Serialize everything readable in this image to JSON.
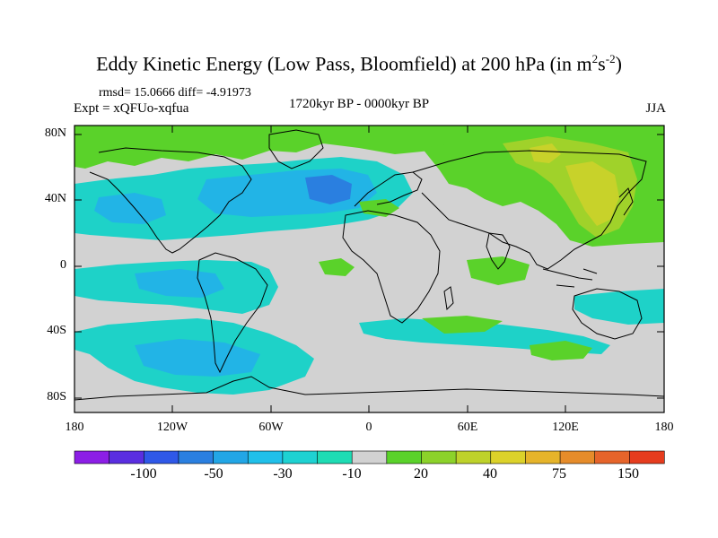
{
  "title": {
    "main": "Eddy Kinetic Energy (Low Pass, Bloomfield) at 200 hPa (in m",
    "exp1": "2",
    "mid": "s",
    "exp2": "-2",
    "end": ")"
  },
  "stats": "rmsd= 15.0666 diff= -4.91973",
  "expt": "Expt = xQFUo-xqfua",
  "period": "1720kyr BP - 0000kyr BP",
  "season": "JJA",
  "lat_labels": [
    "80N",
    "40N",
    "0",
    "40S",
    "80S"
  ],
  "lon_labels": [
    "180",
    "120W",
    "60W",
    "0",
    "60E",
    "120E",
    "180"
  ],
  "colorbar": {
    "colors": [
      "#8c1ee6",
      "#5a2ee0",
      "#2f58e8",
      "#2a7fe0",
      "#22a6e6",
      "#20c0ea",
      "#1ed2d2",
      "#1edcb4",
      "#d2d2d2",
      "#5ad22a",
      "#8cd22a",
      "#bed22a",
      "#dcd22a",
      "#e6b42a",
      "#e68c2a",
      "#e6642a",
      "#e63c1e"
    ],
    "labels": [
      "-100",
      "-50",
      "-30",
      "-10",
      "20",
      "40",
      "75",
      "150"
    ]
  },
  "legend_colors": {
    "neutral": "#d2d2d2",
    "neg_light": "#1ed2c8",
    "neg_mid": "#22b4e6",
    "neg_strong": "#2a7fe0",
    "pos_light": "#5ad22a",
    "pos_mid": "#a0d22a",
    "pos_strong": "#c8d22a"
  }
}
